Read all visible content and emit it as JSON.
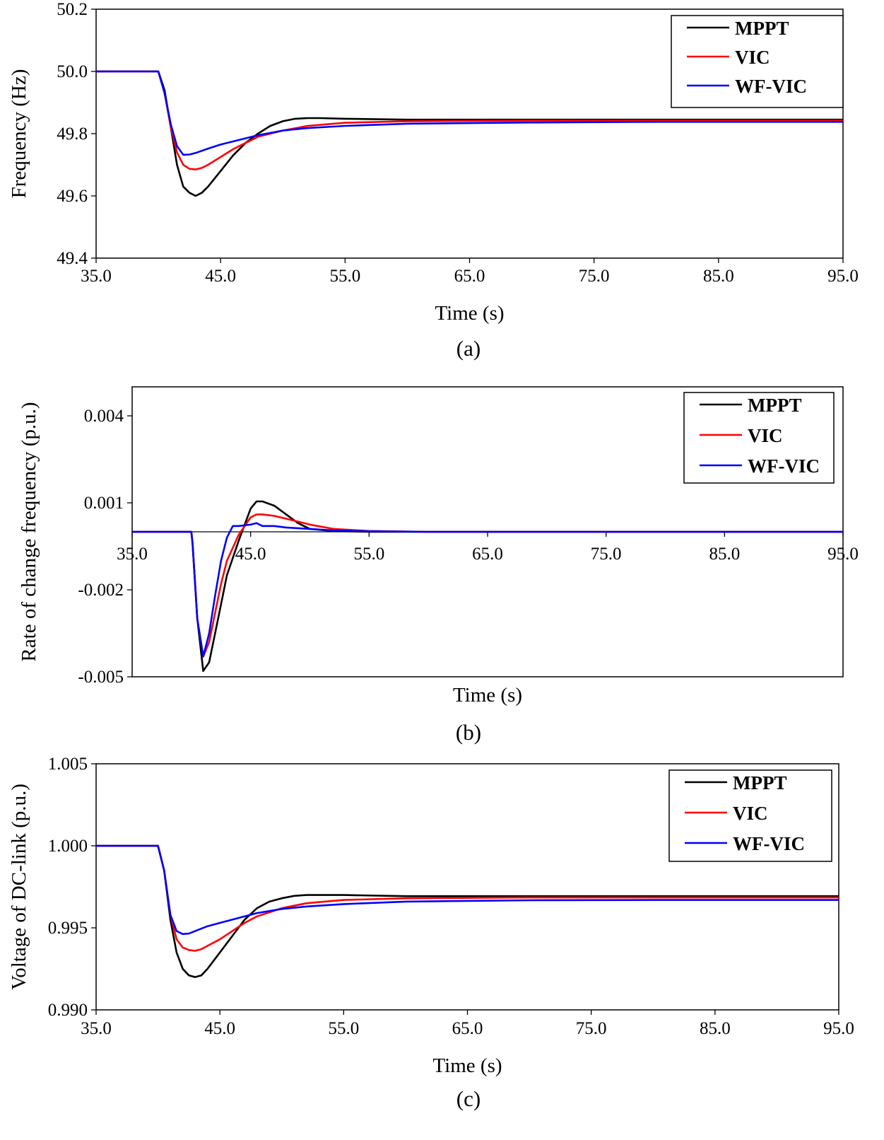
{
  "chart_data": [
    {
      "id": "a",
      "type": "line",
      "caption": "(a)",
      "xlabel": "Time (s)",
      "ylabel": "Frequency (Hz)",
      "xlim": [
        35,
        95
      ],
      "ylim": [
        49.4,
        50.2
      ],
      "xticks": [
        "35.0",
        "45.0",
        "55.0",
        "65.0",
        "75.0",
        "85.0",
        "95.0"
      ],
      "yticks": [
        "49.4",
        "49.6",
        "49.8",
        "50.0",
        "50.2"
      ],
      "legend_position": "top-right",
      "series": [
        {
          "name": "MPPT",
          "color": "#000000",
          "x": [
            35,
            40,
            40.5,
            41,
            41.5,
            42,
            42.5,
            43,
            43.5,
            44,
            45,
            46,
            47,
            48,
            49,
            50,
            51,
            52,
            53,
            55,
            60,
            70,
            80,
            95
          ],
          "y": [
            50.0,
            50.0,
            49.94,
            49.82,
            49.7,
            49.63,
            49.61,
            49.6,
            49.61,
            49.63,
            49.68,
            49.73,
            49.77,
            49.8,
            49.825,
            49.84,
            49.848,
            49.85,
            49.85,
            49.848,
            49.845,
            49.845,
            49.845,
            49.845
          ]
        },
        {
          "name": "VIC",
          "color": "#ff0000",
          "x": [
            35,
            40,
            40.5,
            41,
            41.5,
            42,
            42.5,
            43,
            43.5,
            44,
            45,
            46,
            47,
            48,
            50,
            52,
            55,
            60,
            70,
            80,
            95
          ],
          "y": [
            50.0,
            50.0,
            49.93,
            49.82,
            49.74,
            49.7,
            49.687,
            49.685,
            49.69,
            49.7,
            49.725,
            49.75,
            49.77,
            49.79,
            49.81,
            49.825,
            49.835,
            49.84,
            49.842,
            49.842,
            49.842
          ]
        },
        {
          "name": "WF-VIC",
          "color": "#0000ff",
          "x": [
            35,
            40,
            40.5,
            41,
            41.5,
            42,
            42.5,
            43,
            44,
            45,
            46,
            47,
            48,
            50,
            52,
            55,
            60,
            70,
            80,
            95
          ],
          "y": [
            50.0,
            50.0,
            49.93,
            49.83,
            49.76,
            49.732,
            49.733,
            49.738,
            49.752,
            49.765,
            49.775,
            49.785,
            49.795,
            49.81,
            49.818,
            49.825,
            49.832,
            49.836,
            49.838,
            49.838
          ]
        }
      ]
    },
    {
      "id": "b",
      "type": "line",
      "caption": "(b)",
      "xlabel": "Time (s)",
      "ylabel": "Rate of change frequency (p.u.)",
      "xlim": [
        35,
        95
      ],
      "ylim": [
        -0.005,
        0.005
      ],
      "xtick_values": [
        35,
        45,
        55,
        65,
        75,
        85,
        95
      ],
      "xticks": [
        "35.0",
        "45.0",
        "55.0",
        "65.0",
        "75.0",
        "85.0",
        "95.0"
      ],
      "ytick_values": [
        -0.005,
        -0.002,
        0.001,
        0.004
      ],
      "yticks": [
        "-0.005",
        "-0.002",
        "0.001",
        "0.004"
      ],
      "legend_position": "top-right",
      "series": [
        {
          "name": "MPPT",
          "color": "#000000",
          "x": [
            35,
            40,
            40.1,
            40.5,
            41,
            41.5,
            42,
            42.5,
            43,
            44,
            45,
            45.5,
            46,
            47,
            48,
            49,
            50,
            52,
            55,
            60,
            70,
            80,
            95
          ],
          "y": [
            0,
            0,
            -0.0004,
            -0.003,
            -0.0048,
            -0.0045,
            -0.0035,
            -0.0025,
            -0.0015,
            -0.0003,
            0.0008,
            0.00105,
            0.00105,
            0.0009,
            0.0006,
            0.0003,
            0.0001,
            3e-05,
            0,
            0,
            0,
            0,
            0
          ]
        },
        {
          "name": "VIC",
          "color": "#ff0000",
          "x": [
            35,
            40,
            40.1,
            40.5,
            41,
            41.5,
            42,
            42.5,
            43,
            44,
            45,
            45.5,
            46,
            47,
            48,
            50,
            52,
            55,
            60,
            70,
            80,
            95
          ],
          "y": [
            0,
            0,
            -0.0004,
            -0.003,
            -0.0043,
            -0.0038,
            -0.0028,
            -0.0018,
            -0.001,
            -0.0001,
            0.0005,
            0.0006,
            0.0006,
            0.00055,
            0.00045,
            0.00025,
            0.0001,
            3e-05,
            0,
            0,
            0,
            0
          ]
        },
        {
          "name": "WF-VIC",
          "color": "#0000ff",
          "x": [
            35,
            40,
            40.1,
            40.5,
            41,
            41.5,
            42,
            42.5,
            43,
            43.5,
            44,
            45,
            45.5,
            46,
            47,
            48,
            50,
            52,
            55,
            60,
            70,
            80,
            95
          ],
          "y": [
            0,
            0,
            -0.0004,
            -0.003,
            -0.0043,
            -0.0035,
            -0.0022,
            -0.001,
            -0.0002,
            0.0002,
            0.0002,
            0.00025,
            0.0003,
            0.0002,
            0.0002,
            0.00015,
            0.0001,
            5e-05,
            2e-05,
            0,
            0,
            0,
            0
          ]
        }
      ]
    },
    {
      "id": "c",
      "type": "line",
      "caption": "(c)",
      "xlabel": "Time (s)",
      "ylabel": "Voltage of DC-link (p.u.)",
      "xlim": [
        35,
        95
      ],
      "ylim": [
        0.99,
        1.005
      ],
      "xticks": [
        "35.0",
        "45.0",
        "55.0",
        "65.0",
        "75.0",
        "85.0",
        "95.0"
      ],
      "yticks": [
        "0.990",
        "0.995",
        "1.000",
        "1.005"
      ],
      "legend_position": "top-right",
      "series": [
        {
          "name": "MPPT",
          "color": "#000000",
          "x": [
            35,
            40,
            40.5,
            41,
            41.5,
            42,
            42.5,
            43,
            43.5,
            44,
            45,
            46,
            47,
            48,
            49,
            50,
            51,
            52,
            53,
            55,
            60,
            70,
            80,
            95
          ],
          "y": [
            1.0,
            1.0,
            0.9985,
            0.9955,
            0.9935,
            0.9925,
            0.9921,
            0.992,
            0.9921,
            0.9925,
            0.9935,
            0.9945,
            0.9955,
            0.9962,
            0.9966,
            0.9968,
            0.99695,
            0.997,
            0.997,
            0.997,
            0.99693,
            0.99693,
            0.99693,
            0.99693
          ]
        },
        {
          "name": "VIC",
          "color": "#ff0000",
          "x": [
            35,
            40,
            40.5,
            41,
            41.5,
            42,
            42.5,
            43,
            43.5,
            44,
            45,
            46,
            47,
            48,
            50,
            52,
            55,
            60,
            70,
            80,
            95
          ],
          "y": [
            1.0,
            1.0,
            0.9985,
            0.9958,
            0.9943,
            0.9938,
            0.99365,
            0.9936,
            0.9937,
            0.9939,
            0.9943,
            0.9948,
            0.9953,
            0.9957,
            0.9962,
            0.9965,
            0.9967,
            0.9968,
            0.99685,
            0.99685,
            0.99685
          ]
        },
        {
          "name": "WF-VIC",
          "color": "#0000ff",
          "x": [
            35,
            40,
            40.5,
            41,
            41.5,
            42,
            42.5,
            43,
            44,
            45,
            46,
            47,
            48,
            50,
            52,
            55,
            60,
            70,
            80,
            95
          ],
          "y": [
            1.0,
            1.0,
            0.9985,
            0.9958,
            0.9948,
            0.99462,
            0.99465,
            0.9948,
            0.9951,
            0.9953,
            0.9955,
            0.9957,
            0.9959,
            0.99615,
            0.9963,
            0.99645,
            0.9966,
            0.99668,
            0.9967,
            0.9967
          ]
        }
      ]
    }
  ]
}
